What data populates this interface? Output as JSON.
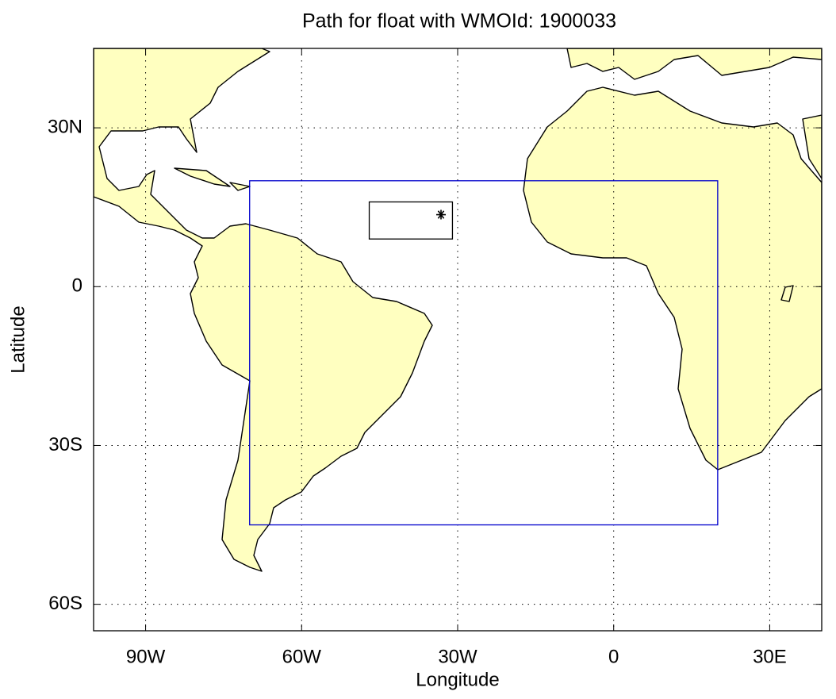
{
  "chart_data": {
    "type": "map",
    "title": "Path for float with WMOId: 1900033",
    "xlabel": "Longitude",
    "ylabel": "Latitude",
    "xlim": [
      -100,
      40
    ],
    "ylim": [
      -65,
      45
    ],
    "xticks": [
      {
        "value": -90,
        "label": "90W"
      },
      {
        "value": -60,
        "label": "60W"
      },
      {
        "value": -30,
        "label": "30W"
      },
      0,
      {
        "value": 30,
        "label": "30E"
      }
    ],
    "yticks": [
      {
        "value": 30,
        "label": "30N"
      },
      0,
      {
        "value": -30,
        "label": "30S"
      },
      {
        "value": -60,
        "label": "60S"
      }
    ],
    "grid": true,
    "land_color": "#ffffc0",
    "boxes": [
      {
        "color": "#0000cc",
        "xlim": [
          -70,
          20
        ],
        "ylim": [
          -45,
          20
        ]
      },
      {
        "color": "#000000",
        "xlim": [
          -47,
          -31
        ],
        "ylim": [
          9,
          16
        ]
      }
    ],
    "points": {
      "color": "#000000",
      "x": [
        -33.2
      ],
      "y": [
        13.6
      ]
    }
  }
}
